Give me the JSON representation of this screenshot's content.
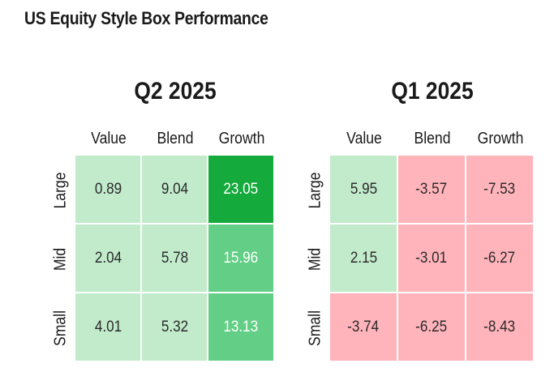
{
  "header": {
    "title": "US Equity Style Box Performance"
  },
  "chart_data": [
    {
      "type": "heatmap",
      "title": "Q2 2025",
      "columns": [
        "Value",
        "Blend",
        "Growth"
      ],
      "rows": [
        "Large",
        "Mid",
        "Small"
      ],
      "values": [
        [
          0.89,
          9.04,
          23.05
        ],
        [
          2.04,
          5.78,
          15.96
        ],
        [
          4.01,
          5.32,
          13.13
        ]
      ],
      "labels": [
        [
          "0.89",
          "9.04",
          "23.05"
        ],
        [
          "2.04",
          "5.78",
          "15.96"
        ],
        [
          "4.01",
          "5.32",
          "13.13"
        ]
      ]
    },
    {
      "type": "heatmap",
      "title": "Q1 2025",
      "columns": [
        "Value",
        "Blend",
        "Growth"
      ],
      "rows": [
        "Large",
        "Mid",
        "Small"
      ],
      "values": [
        [
          5.95,
          -3.57,
          -7.53
        ],
        [
          2.15,
          -3.01,
          -6.27
        ],
        [
          -3.74,
          -6.25,
          -8.43
        ]
      ],
      "labels": [
        [
          "5.95",
          "-3.57",
          "-7.53"
        ],
        [
          "2.15",
          "-3.01",
          "-6.27"
        ],
        [
          "-3.74",
          "-6.25",
          "-8.43"
        ]
      ]
    }
  ],
  "colors": {
    "positive_light": "#c2ebcc",
    "positive_mid": "#63cf86",
    "positive_strong": "#14aa3c",
    "negative": "#ffb3ba"
  }
}
